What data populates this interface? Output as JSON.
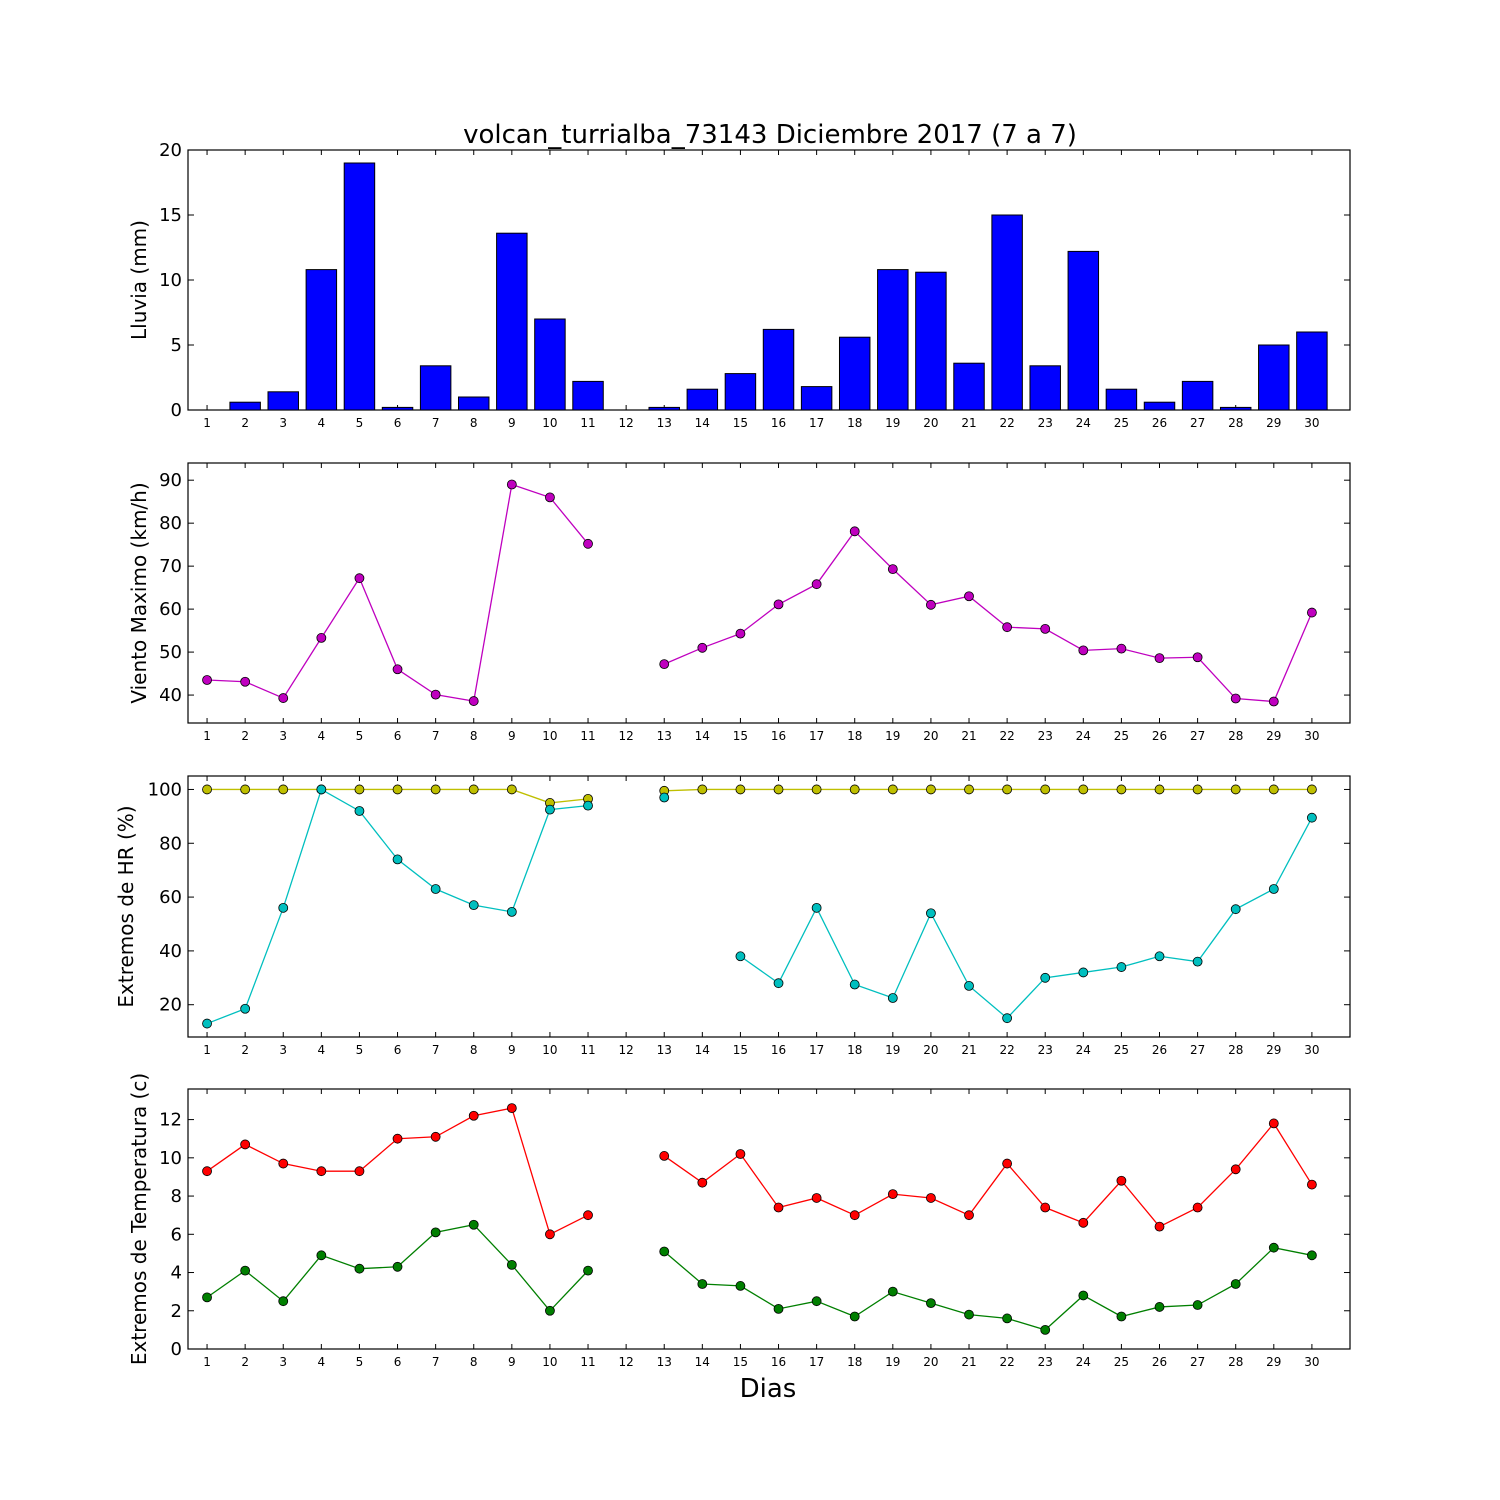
{
  "title": "volcan_turrialba_73143 Diciembre 2017  (7 a 7)",
  "xlabel": "Dias",
  "days": [
    "1",
    "2",
    "3",
    "4",
    "5",
    "6",
    "7",
    "8",
    "9",
    "10",
    "11",
    "12",
    "13",
    "14",
    "15",
    "16",
    "17",
    "18",
    "19",
    "20",
    "21",
    "22",
    "23",
    "24",
    "25",
    "26",
    "27",
    "28",
    "29",
    "30"
  ],
  "chart_data": [
    {
      "type": "bar",
      "ylabel": "Lluvia (mm)",
      "ylim": [
        0,
        20
      ],
      "yticks": [
        "0",
        "5",
        "10",
        "15",
        "20"
      ],
      "categories": [
        "1",
        "2",
        "3",
        "4",
        "5",
        "6",
        "7",
        "8",
        "9",
        "10",
        "11",
        "12",
        "13",
        "14",
        "15",
        "16",
        "17",
        "18",
        "19",
        "20",
        "21",
        "22",
        "23",
        "24",
        "25",
        "26",
        "27",
        "28",
        "29",
        "30"
      ],
      "series": [
        {
          "color": "#0000ff",
          "values": [
            0,
            0.6,
            1.4,
            10.8,
            19.0,
            0.2,
            3.4,
            1.0,
            13.6,
            7.0,
            2.2,
            0,
            0.2,
            1.6,
            2.8,
            6.2,
            1.8,
            5.6,
            10.8,
            10.6,
            3.6,
            15.0,
            3.4,
            12.2,
            1.6,
            0.6,
            2.2,
            0.2,
            5.0,
            6.0
          ]
        }
      ]
    },
    {
      "type": "line",
      "ylabel": "Viento Maximo (km/h)",
      "ylim": [
        33.5,
        94
      ],
      "yticks": [
        "40",
        "50",
        "60",
        "70",
        "80",
        "90"
      ],
      "categories": [
        "1",
        "2",
        "3",
        "4",
        "5",
        "6",
        "7",
        "8",
        "9",
        "10",
        "11",
        "12",
        "13",
        "14",
        "15",
        "16",
        "17",
        "18",
        "19",
        "20",
        "21",
        "22",
        "23",
        "24",
        "25",
        "26",
        "27",
        "28",
        "29",
        "30"
      ],
      "series": [
        {
          "color": "#bf00bf",
          "values": [
            43.5,
            43.1,
            39.3,
            53.3,
            67.2,
            46.0,
            40.1,
            38.6,
            89.0,
            86.0,
            75.2,
            null,
            47.2,
            51.0,
            54.3,
            61.1,
            65.8,
            78.1,
            69.3,
            61.0,
            63.0,
            55.8,
            55.4,
            50.4,
            50.8,
            48.6,
            48.8,
            39.2,
            38.5,
            59.2
          ]
        }
      ]
    },
    {
      "type": "line",
      "ylabel": "Extremos de HR (%)",
      "ylim": [
        8,
        105
      ],
      "yticks": [
        "20",
        "40",
        "60",
        "80",
        "100"
      ],
      "categories": [
        "1",
        "2",
        "3",
        "4",
        "5",
        "6",
        "7",
        "8",
        "9",
        "10",
        "11",
        "12",
        "13",
        "14",
        "15",
        "16",
        "17",
        "18",
        "19",
        "20",
        "21",
        "22",
        "23",
        "24",
        "25",
        "26",
        "27",
        "28",
        "29",
        "30"
      ],
      "series": [
        {
          "color": "#bfbf00",
          "values": [
            100,
            100,
            100,
            100,
            100,
            100,
            100,
            100,
            100,
            95,
            96.5,
            null,
            99.5,
            100,
            100,
            100,
            100,
            100,
            100,
            100,
            100,
            100,
            100,
            100,
            100,
            100,
            100,
            100,
            100,
            100
          ]
        },
        {
          "color": "#00bfbf",
          "values": [
            13,
            18.5,
            56,
            100,
            92,
            74,
            63,
            57,
            54.5,
            92.5,
            94,
            null,
            97,
            null,
            38,
            28,
            56,
            27.5,
            22.5,
            54,
            27,
            15,
            30,
            32,
            34,
            38,
            36,
            55.5,
            63,
            89.5
          ]
        }
      ]
    },
    {
      "type": "line",
      "ylabel": "Extremos de Temperatura (c)",
      "ylim": [
        0,
        13.6
      ],
      "yticks": [
        "0",
        "2",
        "4",
        "6",
        "8",
        "10",
        "12"
      ],
      "categories": [
        "1",
        "2",
        "3",
        "4",
        "5",
        "6",
        "7",
        "8",
        "9",
        "10",
        "11",
        "12",
        "13",
        "14",
        "15",
        "16",
        "17",
        "18",
        "19",
        "20",
        "21",
        "22",
        "23",
        "24",
        "25",
        "26",
        "27",
        "28",
        "29",
        "30"
      ],
      "series": [
        {
          "color": "#ff0000",
          "values": [
            9.3,
            10.7,
            9.7,
            9.3,
            9.3,
            11.0,
            11.1,
            12.2,
            12.6,
            6.0,
            7.0,
            null,
            10.1,
            8.7,
            10.2,
            7.4,
            7.9,
            7.0,
            8.1,
            7.9,
            7.0,
            9.7,
            7.4,
            6.6,
            8.8,
            6.4,
            7.4,
            9.4,
            11.8,
            8.6
          ]
        },
        {
          "color": "#007f00",
          "values": [
            2.7,
            4.1,
            2.5,
            4.9,
            4.2,
            4.3,
            6.1,
            6.5,
            4.4,
            2.0,
            4.1,
            null,
            5.1,
            3.4,
            3.3,
            2.1,
            2.5,
            1.7,
            3.0,
            2.4,
            1.8,
            1.6,
            1.0,
            2.8,
            1.7,
            2.2,
            2.3,
            3.4,
            5.3,
            4.9
          ]
        }
      ]
    }
  ]
}
